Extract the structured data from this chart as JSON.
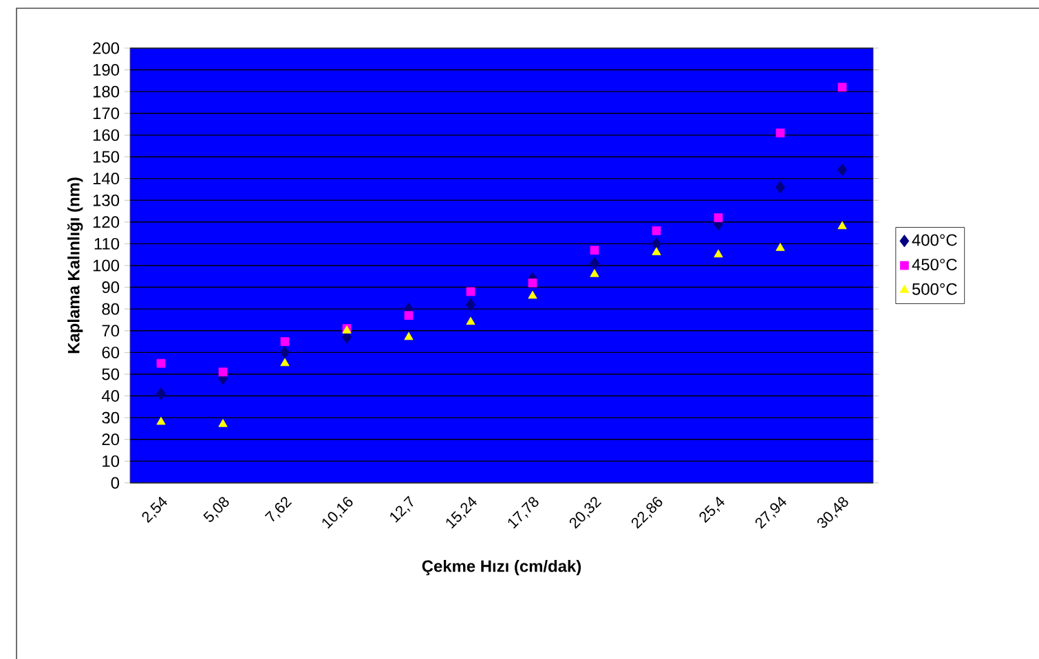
{
  "chart_data": {
    "type": "scatter",
    "xlabel": "Çekme Hızı (cm/dak)",
    "ylabel": "Kaplama Kalınlığı (nm)",
    "categories": [
      "2,54",
      "5,08",
      "7,62",
      "10,16",
      "12,7",
      "15,24",
      "17,78",
      "20,32",
      "22,86",
      "25,4",
      "27,94",
      "30,48"
    ],
    "series": [
      {
        "name": "400°C",
        "color": "#000080",
        "marker": "diamond",
        "values": [
          41,
          48,
          60,
          67,
          80,
          82,
          94,
          101,
          110,
          119,
          136,
          144
        ]
      },
      {
        "name": "450°C",
        "color": "#ff00ff",
        "marker": "square",
        "values": [
          55,
          51,
          65,
          71,
          77,
          88,
          92,
          107,
          116,
          122,
          161,
          182
        ]
      },
      {
        "name": "500°C",
        "color": "#ffff00",
        "marker": "triangle",
        "values": [
          28,
          27,
          55,
          70,
          67,
          74,
          86,
          96,
          106,
          105,
          108,
          118
        ]
      }
    ],
    "ylim": [
      0,
      200
    ],
    "yticks": [
      0,
      10,
      20,
      30,
      40,
      50,
      60,
      70,
      80,
      90,
      100,
      110,
      120,
      130,
      140,
      150,
      160,
      170,
      180,
      190,
      200
    ],
    "grid": "y",
    "legend": "right"
  }
}
